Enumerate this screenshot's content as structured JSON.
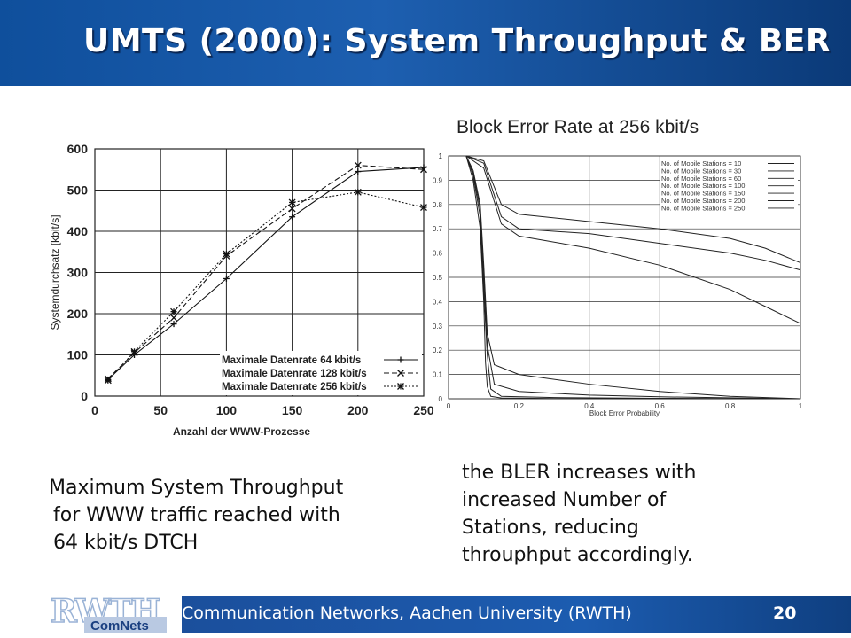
{
  "slide": {
    "title": "UMTS (2000): System Throughput & BER",
    "caption_left": [
      "Maximum System Throughput",
      "for WWW traffic reached with",
      "64 kbit/s DTCH"
    ],
    "caption_right": [
      "the BLER increases with",
      "increased Number of",
      "Stations, reducing",
      "throuphput accordingly."
    ],
    "footer_text": "Communication Networks, Aachen University (RWTH)",
    "page_number": "20",
    "logo_top": "RWTH",
    "logo_bottom": "ComNets",
    "colors": {
      "header": "#1d5fb0",
      "footer": "#1c5cb0",
      "title_text": "#ffffff"
    }
  },
  "chart_data": [
    {
      "type": "line",
      "title": "",
      "xlabel": "Anzahl der WWW-Prozesse",
      "ylabel": "Systemdurchsatz [kbit/s]",
      "xlim": [
        0,
        250
      ],
      "ylim": [
        0,
        600
      ],
      "xticks": [
        0,
        50,
        100,
        150,
        200,
        250
      ],
      "yticks": [
        0,
        100,
        200,
        300,
        400,
        500,
        600
      ],
      "grid": true,
      "legend_position": "bottom-right",
      "series": [
        {
          "name": "Maximale Datenrate  64 kbit/s",
          "marker": "+",
          "dash": "solid",
          "x": [
            10,
            30,
            60,
            100,
            150,
            200,
            250
          ],
          "y": [
            40,
            100,
            175,
            285,
            435,
            545,
            555
          ]
        },
        {
          "name": "Maximale Datenrate 128 kbit/s",
          "marker": "x",
          "dash": "long-dash",
          "x": [
            10,
            30,
            60,
            100,
            150,
            200,
            250
          ],
          "y": [
            42,
            105,
            190,
            340,
            455,
            560,
            550
          ]
        },
        {
          "name": "Maximale Datenrate 256 kbit/s",
          "marker": "*",
          "dash": "dotted",
          "x": [
            10,
            30,
            60,
            100,
            150,
            200,
            250
          ],
          "y": [
            38,
            108,
            205,
            345,
            470,
            495,
            458
          ]
        }
      ]
    },
    {
      "type": "line",
      "title": "Block Error Rate at 256 kbit/s",
      "xlabel": "Block Error Probability",
      "ylabel": "",
      "xlim": [
        0,
        1
      ],
      "ylim": [
        0,
        1
      ],
      "xticks": [
        0,
        0.2,
        0.4,
        0.6,
        0.8,
        1
      ],
      "xtick_labels": [
        "0",
        "0.2",
        "0.4",
        "0.6",
        "0.8",
        "1"
      ],
      "yticks": [
        0,
        0.1,
        0.2,
        0.3,
        0.4,
        0.5,
        0.6,
        0.7,
        0.8,
        0.9,
        1
      ],
      "ytick_labels": [
        "0",
        "0.1",
        "0.2",
        "0.3",
        "0.4",
        "0.5",
        "0.6",
        "0.7",
        "0.8",
        "0.9",
        "1"
      ],
      "grid": true,
      "legend_position": "top-right",
      "series": [
        {
          "name": "No. of Mobile Stations =  10",
          "x": [
            0.05,
            0.07,
            0.09,
            0.1,
            0.105,
            0.11,
            0.12,
            0.15,
            0.3,
            0.6,
            1.0
          ],
          "y": [
            1.0,
            0.9,
            0.7,
            0.4,
            0.15,
            0.05,
            0.01,
            0.003,
            0.001,
            0.0,
            0.0
          ]
        },
        {
          "name": "No. of Mobile Stations =  30",
          "x": [
            0.05,
            0.07,
            0.09,
            0.1,
            0.11,
            0.12,
            0.15,
            0.3,
            0.6,
            1.0
          ],
          "y": [
            1.0,
            0.92,
            0.75,
            0.45,
            0.18,
            0.04,
            0.01,
            0.005,
            0.002,
            0.0
          ]
        },
        {
          "name": "No. of Mobile Stations =  60",
          "x": [
            0.05,
            0.07,
            0.09,
            0.1,
            0.11,
            0.13,
            0.2,
            0.4,
            0.6,
            1.0
          ],
          "y": [
            1.0,
            0.93,
            0.78,
            0.5,
            0.22,
            0.06,
            0.03,
            0.015,
            0.008,
            0.0
          ]
        },
        {
          "name": "No. of Mobile Stations = 100",
          "x": [
            0.05,
            0.07,
            0.09,
            0.1,
            0.11,
            0.13,
            0.2,
            0.4,
            0.6,
            0.8,
            1.0
          ],
          "y": [
            1.0,
            0.94,
            0.8,
            0.55,
            0.27,
            0.14,
            0.1,
            0.06,
            0.03,
            0.01,
            0.0
          ]
        },
        {
          "name": "No. of Mobile Stations = 150",
          "x": [
            0.05,
            0.1,
            0.15,
            0.2,
            0.4,
            0.6,
            0.8,
            0.9,
            1.0
          ],
          "y": [
            1.0,
            0.95,
            0.72,
            0.67,
            0.62,
            0.55,
            0.45,
            0.38,
            0.31
          ]
        },
        {
          "name": "No. of Mobile Stations = 200",
          "x": [
            0.05,
            0.1,
            0.15,
            0.2,
            0.4,
            0.6,
            0.8,
            0.9,
            1.0
          ],
          "y": [
            1.0,
            0.97,
            0.75,
            0.7,
            0.68,
            0.64,
            0.6,
            0.57,
            0.53
          ]
        },
        {
          "name": "No. of Mobile Stations = 250",
          "x": [
            0.05,
            0.1,
            0.15,
            0.2,
            0.4,
            0.6,
            0.8,
            0.9,
            1.0
          ],
          "y": [
            1.0,
            0.98,
            0.8,
            0.76,
            0.73,
            0.7,
            0.66,
            0.62,
            0.56
          ]
        }
      ]
    }
  ]
}
